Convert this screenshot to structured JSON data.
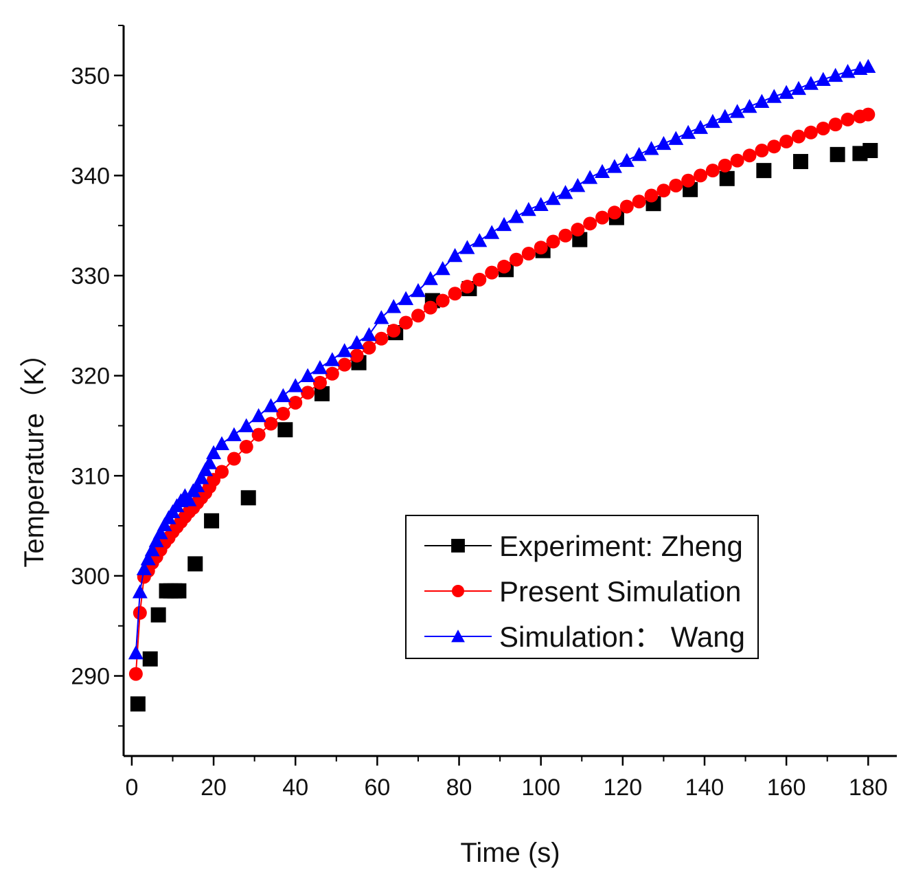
{
  "chart_data": {
    "type": "line",
    "title": "",
    "xlabel": "Time (s)",
    "ylabel": "Temperature（K）",
    "xlim": [
      -2,
      187
    ],
    "ylim": [
      282,
      355
    ],
    "xticks": [
      0,
      20,
      40,
      60,
      80,
      100,
      120,
      140,
      160,
      180
    ],
    "yticks": [
      290,
      300,
      310,
      320,
      330,
      340,
      350
    ],
    "grid": false,
    "legend_position": "lower-right",
    "series": [
      {
        "name": "Experiment: Zheng",
        "color": "#000000",
        "marker": "square",
        "line": false,
        "x": [
          1.5,
          4.5,
          6.5,
          8.5,
          9.5,
          10.5,
          11.5,
          15.5,
          19.5,
          28.5,
          37.5,
          46.5,
          55.5,
          64.5,
          73.5,
          82.5,
          91.5,
          100.5,
          109.5,
          118.5,
          127.5,
          136.5,
          145.5,
          154.5,
          163.5,
          172.5,
          178.0,
          180.5
        ],
        "y": [
          287.2,
          291.7,
          296.1,
          298.5,
          298.5,
          298.5,
          298.5,
          301.2,
          305.5,
          307.8,
          314.6,
          318.2,
          321.3,
          324.3,
          327.5,
          328.7,
          330.6,
          332.5,
          333.6,
          335.8,
          337.2,
          338.6,
          339.7,
          340.5,
          341.4,
          342.1,
          342.2,
          342.5
        ]
      },
      {
        "name": "Present Simulation",
        "color": "#ff0000",
        "marker": "circle",
        "line": true,
        "x": [
          1,
          2,
          3,
          4,
          5,
          6,
          7,
          8,
          9,
          10,
          11,
          12,
          13,
          14,
          15,
          16,
          17,
          18,
          19,
          20,
          22,
          25,
          28,
          31,
          34,
          37,
          40,
          43,
          46,
          49,
          52,
          55,
          58,
          61,
          64,
          67,
          70,
          73,
          76,
          79,
          82,
          85,
          88,
          91,
          94,
          97,
          100,
          103,
          106,
          109,
          112,
          115,
          118,
          121,
          124,
          127,
          130,
          133,
          136,
          139,
          142,
          145,
          148,
          151,
          154,
          157,
          160,
          163,
          166,
          169,
          172,
          175,
          178,
          180
        ],
        "y": [
          290.2,
          296.3,
          299.9,
          300.5,
          301.3,
          301.9,
          302.6,
          303.3,
          303.8,
          304.4,
          304.9,
          305.4,
          305.9,
          306.4,
          306.8,
          307.3,
          307.8,
          308.3,
          308.9,
          309.6,
          310.4,
          311.7,
          312.9,
          314.1,
          315.2,
          316.2,
          317.3,
          318.3,
          319.3,
          320.2,
          321.1,
          322.0,
          322.8,
          323.7,
          324.5,
          325.3,
          326.0,
          326.8,
          327.5,
          328.2,
          328.9,
          329.6,
          330.3,
          330.9,
          331.6,
          332.2,
          332.8,
          333.4,
          334.0,
          334.6,
          335.2,
          335.8,
          336.3,
          336.9,
          337.4,
          338.0,
          338.5,
          339.0,
          339.5,
          340.0,
          340.5,
          341.0,
          341.5,
          342.0,
          342.5,
          342.9,
          343.4,
          343.9,
          344.3,
          344.7,
          345.1,
          345.6,
          345.9,
          346.1
        ]
      },
      {
        "name": "Simulation： Wang",
        "color": "#0000ff",
        "marker": "triangle",
        "line": true,
        "x": [
          1,
          2,
          3,
          4,
          5,
          6,
          7,
          8,
          9,
          10,
          11,
          12,
          13,
          14,
          15,
          16,
          17,
          18,
          19,
          20,
          22,
          25,
          28,
          31,
          34,
          37,
          40,
          43,
          46,
          49,
          52,
          55,
          58,
          61,
          64,
          67,
          70,
          73,
          76,
          79,
          82,
          85,
          88,
          91,
          94,
          97,
          100,
          103,
          106,
          109,
          112,
          115,
          118,
          121,
          124,
          127,
          130,
          133,
          136,
          139,
          142,
          145,
          148,
          151,
          154,
          157,
          160,
          163,
          166,
          169,
          172,
          175,
          178,
          180
        ],
        "y": [
          292.3,
          298.4,
          300.7,
          301.7,
          302.6,
          303.5,
          304.3,
          305.1,
          305.8,
          306.4,
          307.0,
          307.5,
          308.0,
          307.6,
          308.5,
          309.0,
          309.8,
          310.6,
          311.3,
          312.3,
          313.2,
          314.1,
          315.0,
          316.0,
          317.0,
          318.0,
          319.0,
          320.0,
          320.8,
          321.6,
          322.5,
          323.3,
          324.1,
          325.8,
          326.9,
          327.7,
          328.5,
          329.7,
          330.7,
          332.0,
          332.8,
          333.5,
          334.3,
          335.1,
          335.9,
          336.6,
          337.1,
          337.7,
          338.3,
          339.0,
          339.8,
          340.4,
          340.9,
          341.5,
          342.1,
          342.7,
          343.2,
          343.7,
          344.3,
          344.8,
          345.4,
          345.9,
          346.4,
          346.9,
          347.4,
          347.9,
          348.3,
          348.7,
          349.2,
          349.6,
          350.0,
          350.4,
          350.7,
          350.9
        ]
      }
    ]
  }
}
